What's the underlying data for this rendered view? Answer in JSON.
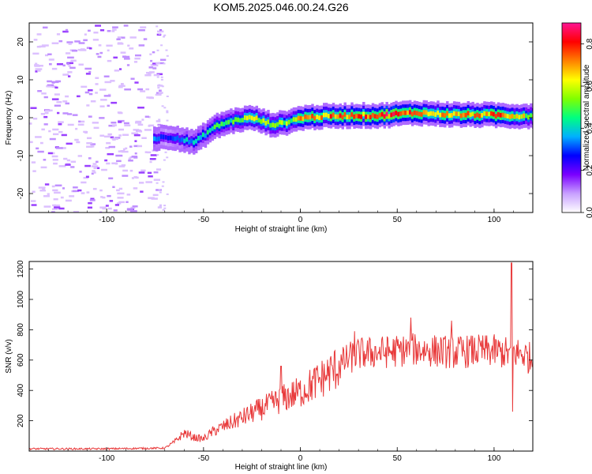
{
  "figure_title": "KOM5.2025.046.00.24.G26",
  "chart_data": [
    {
      "type": "heatmap",
      "xlabel": "Height of straight line (km)",
      "ylabel": "Frequency (Hz)",
      "xlim": [
        -140,
        120
      ],
      "ylim": [
        -25,
        25
      ],
      "xticks": [
        "-100",
        "-50",
        "0",
        "50",
        "100"
      ],
      "yticks": [
        "-20",
        "-10",
        "0",
        "10",
        "20"
      ],
      "colorbar": {
        "label": "Normalized spectral amplitude",
        "range": [
          0.0,
          0.9
        ],
        "ticks": [
          "0.0",
          "0.2",
          "0.4",
          "0.6",
          "0.8"
        ],
        "colormap": [
          "#ffffff",
          "#c8a0ff",
          "#7a00ff",
          "#0000ff",
          "#00b0ff",
          "#00ff80",
          "#80ff00",
          "#ffff00",
          "#ff8000",
          "#ff0000",
          "#ff1493"
        ]
      },
      "ridge": {
        "description_x": [
          -75,
          -70,
          -65,
          -60,
          -55,
          -50,
          -45,
          -40,
          -35,
          -30,
          -25,
          -20,
          -15,
          -10,
          -5,
          0,
          10,
          20,
          30,
          40,
          50,
          60,
          70,
          80,
          90,
          100,
          110,
          120
        ],
        "frequency": [
          -5.5,
          -5.0,
          -5.2,
          -6.0,
          -6.5,
          -4.5,
          -2.5,
          -1.5,
          -0.8,
          -0.3,
          0.0,
          -1.0,
          -1.8,
          -1.5,
          -0.8,
          0.0,
          0.3,
          0.5,
          0.6,
          0.5,
          1.0,
          1.3,
          1.0,
          0.8,
          0.8,
          0.7,
          0.5,
          0.5
        ],
        "amplitude": [
          0.35,
          0.3,
          0.35,
          0.4,
          0.4,
          0.45,
          0.5,
          0.5,
          0.55,
          0.6,
          0.7,
          0.6,
          0.55,
          0.6,
          0.6,
          0.85,
          0.75,
          0.8,
          0.8,
          0.85,
          0.85,
          0.8,
          0.8,
          0.8,
          0.75,
          0.8,
          0.7,
          0.6
        ]
      }
    },
    {
      "type": "line",
      "xlabel": "Height of straight line (km)",
      "ylabel": "SNR (v/v)",
      "xlim": [
        -140,
        120
      ],
      "ylim": [
        0,
        1250
      ],
      "xticks": [
        "-100",
        "-50",
        "0",
        "50",
        "100"
      ],
      "yticks": [
        "200",
        "400",
        "600",
        "800",
        "1000",
        "1200"
      ],
      "color": "#e8393a",
      "trend": {
        "x": [
          -140,
          -100,
          -70,
          -65,
          -60,
          -55,
          -50,
          -45,
          -40,
          -30,
          -20,
          -10,
          0,
          10,
          20,
          25,
          30,
          40,
          50,
          60,
          70,
          80,
          90,
          100,
          105,
          108,
          110,
          115,
          120
        ],
        "y": [
          15,
          15,
          20,
          60,
          120,
          90,
          80,
          130,
          160,
          220,
          280,
          340,
          390,
          470,
          560,
          610,
          640,
          650,
          660,
          670,
          660,
          650,
          660,
          660,
          650,
          640,
          650,
          640,
          600
        ]
      },
      "spikes": [
        {
          "x": 109,
          "y": 1240
        },
        {
          "x": 109.5,
          "y": 260
        },
        {
          "x": -10,
          "y": 560
        },
        {
          "x": 28,
          "y": 790
        },
        {
          "x": 57,
          "y": 880
        },
        {
          "x": 78,
          "y": 860
        }
      ]
    }
  ]
}
